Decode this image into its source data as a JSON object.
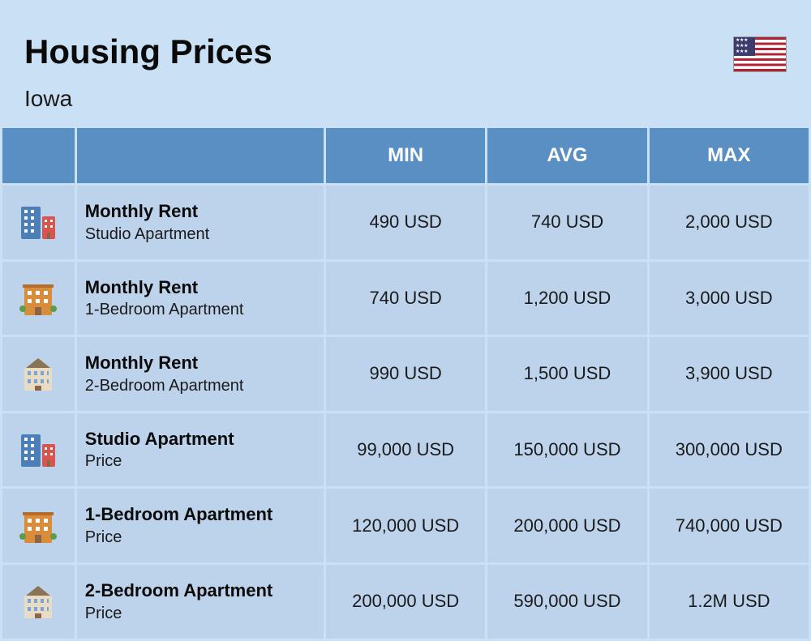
{
  "header": {
    "title": "Housing Prices",
    "subtitle": "Iowa",
    "flag_icon": "us-flag"
  },
  "table": {
    "columns": [
      "",
      "",
      "MIN",
      "AVG",
      "MAX"
    ],
    "column_header_bg": "#5a8fc4",
    "column_header_color": "#ffffff",
    "cell_bg": "#bdd3ec",
    "body_bg": "#cae0f4",
    "rows": [
      {
        "icon": "building-studio",
        "title": "Monthly Rent",
        "sub": "Studio Apartment",
        "min": "490 USD",
        "avg": "740 USD",
        "max": "2,000 USD"
      },
      {
        "icon": "building-1br",
        "title": "Monthly Rent",
        "sub": "1-Bedroom Apartment",
        "min": "740 USD",
        "avg": "1,200 USD",
        "max": "3,000 USD"
      },
      {
        "icon": "building-2br",
        "title": "Monthly Rent",
        "sub": "2-Bedroom Apartment",
        "min": "990 USD",
        "avg": "1,500 USD",
        "max": "3,900 USD"
      },
      {
        "icon": "building-studio",
        "title": "Studio Apartment",
        "sub": "Price",
        "min": "99,000 USD",
        "avg": "150,000 USD",
        "max": "300,000 USD"
      },
      {
        "icon": "building-1br",
        "title": "1-Bedroom Apartment",
        "sub": "Price",
        "min": "120,000 USD",
        "avg": "200,000 USD",
        "max": "740,000 USD"
      },
      {
        "icon": "building-2br",
        "title": "2-Bedroom Apartment",
        "sub": "Price",
        "min": "200,000 USD",
        "avg": "590,000 USD",
        "max": "1.2M USD"
      }
    ]
  },
  "styling": {
    "title_fontsize": 42,
    "title_weight": 800,
    "subtitle_fontsize": 28,
    "header_fontsize": 24,
    "cell_fontsize": 22,
    "label_title_fontsize": 22,
    "label_sub_fontsize": 20,
    "background_color": "#cae0f4",
    "text_color": "#1a1a1a"
  }
}
